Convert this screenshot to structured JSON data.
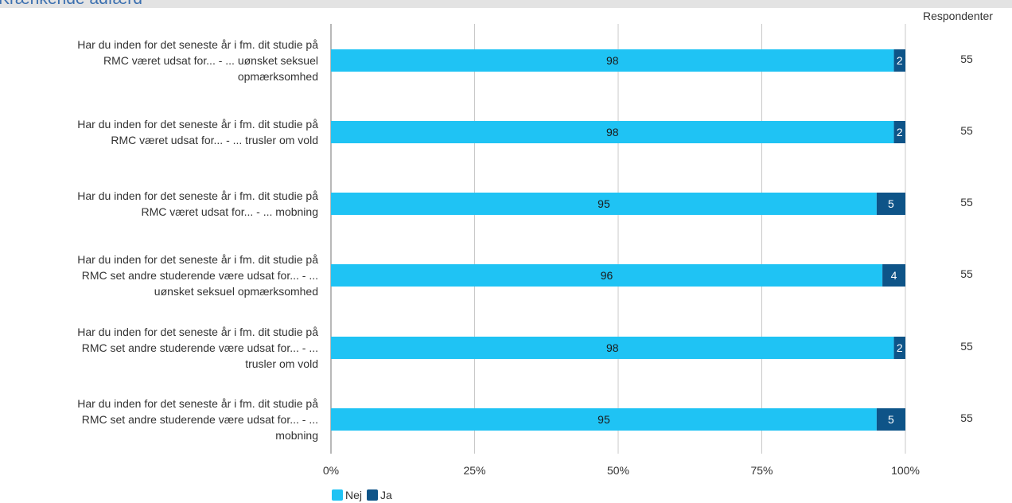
{
  "page_title": "Krænkende adfærd",
  "chart_data": {
    "type": "bar",
    "orientation": "horizontal",
    "stacked": true,
    "categories": [
      "Har du inden for det seneste år i fm. dit studie på RMC været udsat for... - ... uønsket seksuel opmærksomhed",
      "Har du inden for det seneste år i fm. dit studie på RMC været udsat for... - ... trusler om vold",
      "Har du inden for det seneste år i fm. dit studie på RMC været udsat for... - ... mobning",
      "Har du inden for det seneste år i fm. dit studie på RMC set andre studerende være udsat for... - ... uønsket seksuel opmærksomhed",
      "Har du inden for det seneste år i fm. dit studie på RMC set andre studerende være udsat for... - ... trusler om vold",
      "Har du inden for det seneste år i fm. dit studie på RMC set andre studerende være udsat for... - ... mobning"
    ],
    "category_lines": [
      [
        "Har du inden for det seneste år i fm. dit studie på",
        "RMC været udsat for... - ... uønsket seksuel",
        "opmærksomhed"
      ],
      [
        "Har du inden for det seneste år i fm. dit studie på",
        "RMC været udsat for... - ... trusler om vold"
      ],
      [
        "Har du inden for det seneste år i fm. dit studie på",
        "RMC været udsat for... - ... mobning"
      ],
      [
        "Har du inden for det seneste år i fm. dit studie på",
        "RMC set andre studerende være udsat for... - ...",
        "uønsket seksuel opmærksomhed"
      ],
      [
        "Har du inden for det seneste år i fm. dit studie på",
        "RMC set andre studerende være udsat for... - ...",
        "trusler om vold"
      ],
      [
        "Har du inden for det seneste år i fm. dit studie på",
        "RMC set andre studerende være udsat for... - ...",
        "mobning"
      ]
    ],
    "series": [
      {
        "name": "Nej",
        "color": "#1fc3f4",
        "values": [
          98,
          98,
          95,
          96,
          98,
          95
        ]
      },
      {
        "name": "Ja",
        "color": "#0e5488",
        "values": [
          2,
          2,
          5,
          4,
          2,
          5
        ]
      }
    ],
    "x_ticks": [
      "0%",
      "25%",
      "50%",
      "75%",
      "100%"
    ],
    "xlim": [
      0,
      100
    ],
    "grid": true,
    "legend_position": "bottom-left",
    "respondents_header": "Respondenter",
    "respondents": [
      "55",
      "55",
      "55",
      "55",
      "55",
      "55"
    ]
  }
}
